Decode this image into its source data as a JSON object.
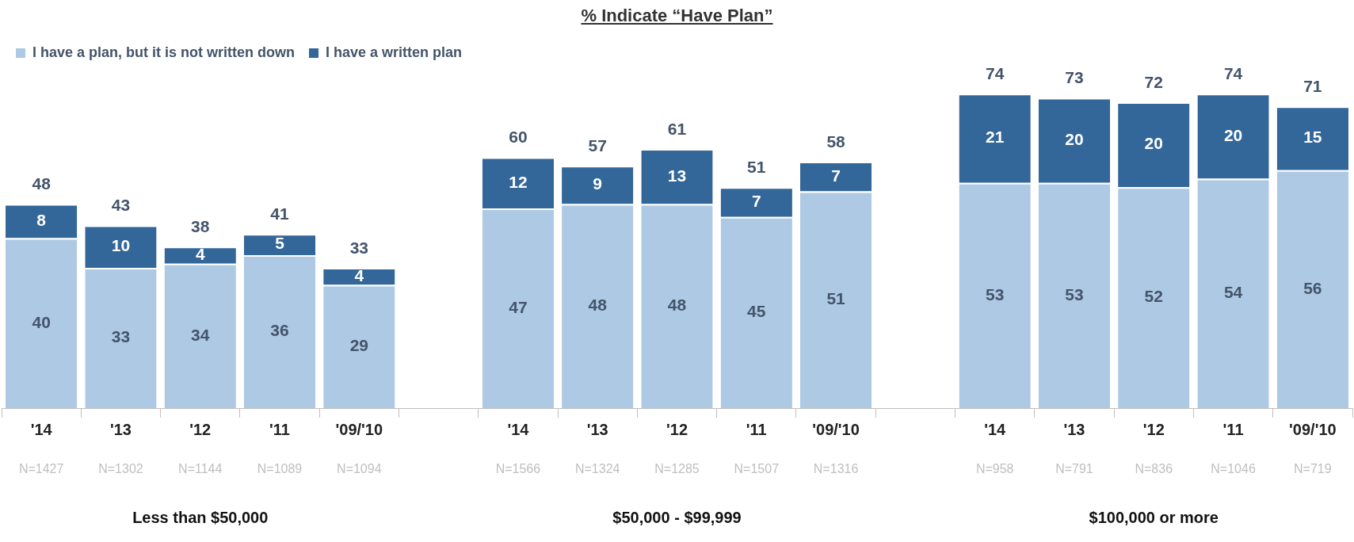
{
  "chart_data": {
    "type": "bar",
    "stacked": true,
    "title": "% Indicate “Have Plan”",
    "categories": [
      "'14",
      "'13",
      "'12",
      "'11",
      "'09/'10",
      null,
      "'14",
      "'13",
      "'12",
      "'11",
      "'09/'10",
      null,
      "'14",
      "'13",
      "'12",
      "'11",
      "'09/'10"
    ],
    "series": [
      {
        "name": "I have a plan, but it is not written down",
        "color": "#adc9e3",
        "values": [
          40,
          33,
          34,
          36,
          29,
          null,
          47,
          48,
          48,
          45,
          51,
          null,
          53,
          53,
          52,
          54,
          56
        ]
      },
      {
        "name": "I have a written plan",
        "color": "#336699",
        "values": [
          8,
          10,
          4,
          5,
          4,
          null,
          12,
          9,
          13,
          7,
          7,
          null,
          21,
          20,
          20,
          20,
          15
        ]
      }
    ],
    "totals": [
      "48",
      "43",
      "38",
      "41",
      "33",
      null,
      "60",
      "57",
      "61",
      "51",
      "58",
      null,
      "74",
      "73",
      "72",
      "74",
      "71"
    ],
    "data_labels": true,
    "legend": "top left",
    "annotations": [
      "N=1427",
      "N=1302",
      "N=1144",
      "N=1089",
      "N=1094",
      "N=1566",
      "N=1324",
      "N=1285",
      "N=1507",
      "N=1316",
      "N=958",
      "N=791",
      "N=836",
      "N=1046",
      "N=719",
      "Less than $50,000",
      "$50,000 - $99,999",
      "$100,000 or more"
    ]
  }
}
